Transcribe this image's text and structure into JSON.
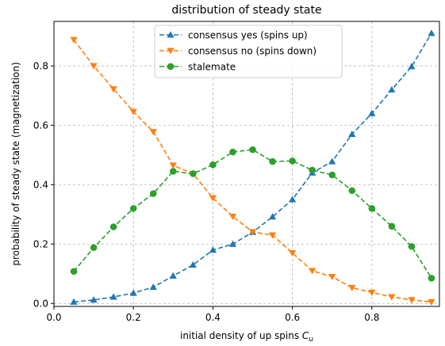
{
  "chart_data": {
    "type": "line",
    "title": "distribution of steady state",
    "xlabel": "initial density of up spins C_u",
    "xlabel_main": "initial density of up spins ",
    "xlabel_symbol": "C",
    "xlabel_sub": "u",
    "ylabel": "probability of steady state (magnetization)",
    "xlim": [
      0.0,
      0.97
    ],
    "ylim": [
      -0.01,
      0.95
    ],
    "xticks": [
      0.0,
      0.2,
      0.4,
      0.6,
      0.8
    ],
    "xtick_labels": [
      "0.0",
      "0.2",
      "0.4",
      "0.6",
      "0.8"
    ],
    "yticks": [
      0.0,
      0.2,
      0.4,
      0.6,
      0.8
    ],
    "ytick_labels": [
      "0.0",
      "0.2",
      "0.4",
      "0.6",
      "0.8"
    ],
    "grid": true,
    "legend_position": "top-center",
    "x": [
      0.05,
      0.1,
      0.15,
      0.2,
      0.25,
      0.3,
      0.35,
      0.4,
      0.45,
      0.5,
      0.55,
      0.6,
      0.65,
      0.7,
      0.75,
      0.8,
      0.85,
      0.9,
      0.95
    ],
    "series": [
      {
        "name": "consensus yes (spins up)",
        "color": "#1f77b4",
        "marker": "triangle-up",
        "linestyle": "dashed",
        "values": [
          0.005,
          0.012,
          0.022,
          0.035,
          0.055,
          0.093,
          0.13,
          0.18,
          0.2,
          0.24,
          0.292,
          0.35,
          0.44,
          0.478,
          0.57,
          0.64,
          0.72,
          0.798,
          0.91
        ]
      },
      {
        "name": "consensus no (spins down)",
        "color": "#ff7f0e",
        "marker": "triangle-down",
        "linestyle": "dashed",
        "values": [
          0.888,
          0.8,
          0.722,
          0.646,
          0.578,
          0.465,
          0.437,
          0.355,
          0.293,
          0.241,
          0.23,
          0.17,
          0.11,
          0.09,
          0.053,
          0.037,
          0.022,
          0.012,
          0.005
        ]
      },
      {
        "name": "stalemate",
        "color": "#2ca02c",
        "marker": "circle",
        "linestyle": "dashed",
        "values": [
          0.108,
          0.188,
          0.258,
          0.32,
          0.37,
          0.445,
          0.437,
          0.467,
          0.51,
          0.518,
          0.478,
          0.48,
          0.449,
          0.433,
          0.38,
          0.32,
          0.26,
          0.192,
          0.085
        ]
      }
    ]
  }
}
